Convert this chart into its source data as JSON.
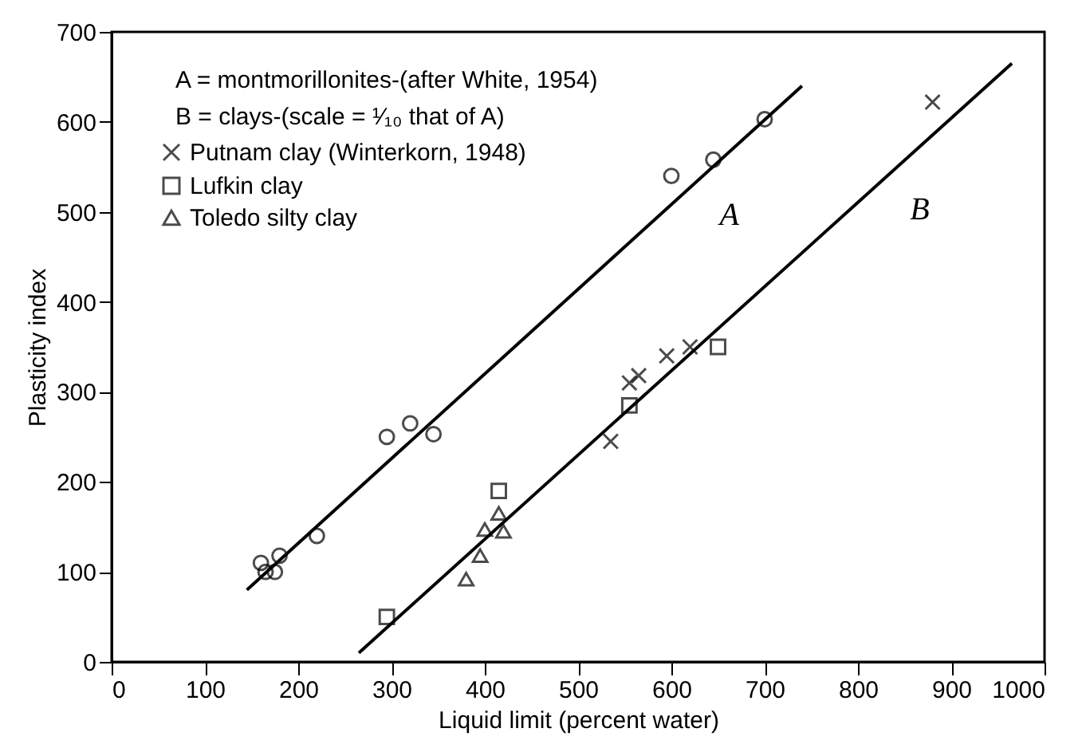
{
  "chart_data": {
    "type": "scatter",
    "xlabel": "Liquid limit (percent water)",
    "ylabel": "Plasticity index",
    "xlim": [
      0,
      1000
    ],
    "ylim": [
      0,
      700
    ],
    "xticks": [
      0,
      100,
      200,
      300,
      400,
      500,
      600,
      700,
      800,
      900,
      {
        "value": 1000,
        "label": "1000"
      }
    ],
    "yticks": [
      0,
      100,
      200,
      300,
      400,
      500,
      600,
      700
    ],
    "grid": false,
    "legend": "top left",
    "annotations": [
      "A = montmorillonites-(after White, 1954)",
      "B = clays-(scale = ¹⁄₁₀ that of A)"
    ],
    "series": [
      {
        "name": "A",
        "type": "line",
        "color": "#000000",
        "x": [
          145,
          740
        ],
        "values": [
          80,
          640
        ]
      },
      {
        "name": "B",
        "type": "line",
        "color": "#000000",
        "x": [
          265,
          965
        ],
        "values": [
          10,
          665
        ]
      },
      {
        "color": "#000000",
        "marker": "circle",
        "x": [
          160,
          165,
          175,
          220,
          345,
          645
        ],
        "values": [
          110,
          100,
          100,
          140,
          253,
          558
        ]
      },
      {
        "color": "#000000",
        "marker": "circle",
        "x": [
          180,
          295,
          320,
          600,
          700
        ],
        "values": [
          118,
          250,
          265,
          540,
          603
        ]
      },
      {
        "name": "Putnam clay (Winterkorn, 1948)",
        "color": "#000000",
        "marker": "cross",
        "x": [
          535,
          555,
          565,
          595,
          620,
          880
        ],
        "values": [
          245,
          310,
          318,
          340,
          350,
          622
        ]
      },
      {
        "name": "Lufkin clay",
        "color": "#000000",
        "marker": "square",
        "x": [
          295,
          415,
          555,
          650
        ],
        "values": [
          50,
          190,
          285,
          350
        ]
      },
      {
        "name": "Toledo silty clay",
        "color": "#000000",
        "marker": "triangle",
        "x": [
          380,
          395,
          400,
          415,
          420
        ],
        "values": [
          92,
          118,
          147,
          165,
          145
        ]
      }
    ]
  }
}
